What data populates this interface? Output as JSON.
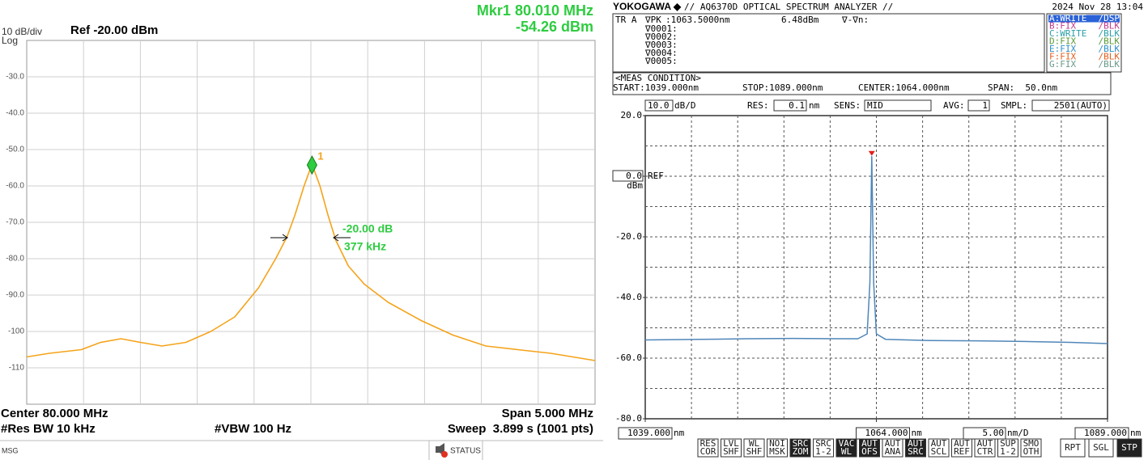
{
  "chart_data": [
    {
      "type": "line",
      "scale": "10 dB/div",
      "scale_type": "Log",
      "reference": "Ref -20.00 dBm",
      "marker": {
        "readout": [
          "Mkr1 80.010 MHz",
          "-54.26 dBm"
        ],
        "label": "1",
        "x": 80.01,
        "y": -54.26,
        "color": "#2ecc40"
      },
      "bandwidth": [
        "-20.00 dB",
        "377 kHz"
      ],
      "footer": {
        "center": "Center 80.000 MHz",
        "span": "Span 5.000 MHz",
        "rbw": "#Res BW 10 kHz",
        "vbw": "#VBW 100 Hz",
        "sweep": "Sweep  3.899 s (1001 pts)"
      },
      "status_bar": {
        "msg": "MSG",
        "status": "STATUS"
      },
      "x": [
        77.5,
        77.7,
        77.98,
        78.15,
        78.33,
        78.5,
        78.69,
        78.9,
        79.12,
        79.33,
        79.54,
        79.69,
        79.79,
        79.86,
        79.94,
        80.01,
        80.08,
        80.15,
        80.22,
        80.33,
        80.47,
        80.68,
        80.97,
        81.25,
        81.54,
        81.82,
        82.11,
        82.5
      ],
      "values": [
        -107,
        -106,
        -105,
        -103,
        -102,
        -103,
        -104,
        -103,
        -100,
        -96,
        -88,
        -80,
        -74,
        -68,
        -60,
        -54,
        -60,
        -68,
        -75,
        -82,
        -87,
        -92,
        -97,
        -101,
        -104,
        -105,
        -106,
        -108
      ],
      "color": "#f5a31a",
      "xlim": [
        77.5,
        82.5
      ],
      "ylim": [
        -120,
        -20
      ],
      "yticks": [
        {
          "value": -30,
          "label": "-30.0"
        },
        {
          "value": -40,
          "label": "-40.0"
        },
        {
          "value": -50,
          "label": "-50.0"
        },
        {
          "value": -60,
          "label": "-60.0"
        },
        {
          "value": -70,
          "label": "-70.0"
        },
        {
          "value": -80,
          "label": "-80.0"
        },
        {
          "value": -90,
          "label": "-90.0"
        },
        -100,
        -110
      ],
      "grid": true
    },
    {
      "type": "line",
      "header": {
        "brand": "YOKOGAWA ◆",
        "model": "// AQ6370D OPTICAL SPECTRUM ANALYZER //",
        "date": "2024 Nov 28 13:04"
      },
      "marker_table": {
        "trace": "TR A",
        "peak": "∇PK",
        "wavelength": ":1063.5000nm",
        "level": "6.48dBm",
        "delta": "∇-∇n:",
        "markers": [
          "∇0001:",
          "∇0002:",
          "∇0003:",
          "∇0004:",
          "∇0005:"
        ]
      },
      "traces": [
        {
          "mode": "A:WRITE",
          "state": "/DSP",
          "color": "#ffffff"
        },
        {
          "mode": "B:FIX",
          "state": "/BLK",
          "color": "#c0398f"
        },
        {
          "mode": "C:WRITE",
          "state": "/BLK",
          "color": "#2a9fa8"
        },
        {
          "mode": "D:FIX",
          "state": "/BLK",
          "color": "#5a9a3a"
        },
        {
          "mode": "E:FIX",
          "state": "/BLK",
          "color": "#2f8fc8"
        },
        {
          "mode": "F:FIX",
          "state": "/BLK",
          "color": "#e06020"
        },
        {
          "mode": "G:FIX",
          "state": "/BLK",
          "color": "#6a9a8a"
        }
      ],
      "meas_condition": {
        "title": "<MEAS CONDITION>",
        "start": "START:1039.000nm",
        "stop": "STOP:1089.000nm",
        "center": "CENTER:1064.000nm",
        "span": "SPAN:  50.0nm"
      },
      "settings": {
        "scale": "10.0",
        "scale_unit": "dB/D",
        "res_label": "RES:",
        "res": "0.1",
        "res_unit": "nm",
        "sens_label": "SENS:",
        "sens": "MID",
        "avg_label": "AVG:",
        "avg": "1",
        "smpl_label": "SMPL:",
        "smpl": "2501(AUTO)"
      },
      "ref_label": "REF",
      "y_unit": "dBm",
      "x_unit": "nm",
      "x_div": "5.00",
      "x_div_unit": "nm/D",
      "softkeys": [
        {
          "label": [
            "RES",
            "COR"
          ],
          "active": false
        },
        {
          "label": [
            "LVL",
            "SHF"
          ],
          "active": false
        },
        {
          "label": [
            "WL",
            "SHF"
          ],
          "active": false
        },
        {
          "label": [
            "NOI",
            "MSK"
          ],
          "active": false
        },
        {
          "label": [
            "SRC",
            "ZOM"
          ],
          "active": true
        },
        {
          "label": [
            "SRC",
            "1-2"
          ],
          "active": false
        },
        {
          "label": [
            "VAC",
            "WL"
          ],
          "active": true
        },
        {
          "label": [
            "AUT",
            "OFS"
          ],
          "active": true
        },
        {
          "label": [
            "AUT",
            "ANA"
          ],
          "active": false
        },
        {
          "label": [
            "AUT",
            "SRC"
          ],
          "active": true
        },
        {
          "label": [
            "AUT",
            "SCL"
          ],
          "active": false
        },
        {
          "label": [
            "AUT",
            "REF"
          ],
          "active": false
        },
        {
          "label": [
            "AUT",
            "CTR"
          ],
          "active": false
        },
        {
          "label": [
            "SUP",
            "1-2"
          ],
          "active": false
        },
        {
          "label": [
            "SMO",
            "OTH"
          ],
          "active": false
        },
        {
          "label": [
            "RPT"
          ],
          "active": false
        },
        {
          "label": [
            "SGL"
          ],
          "active": false
        },
        {
          "label": [
            "STP"
          ],
          "active": true
        }
      ],
      "x": [
        1039,
        1045,
        1050,
        1055,
        1060,
        1062,
        1063,
        1063.3,
        1063.5,
        1063.7,
        1064,
        1065,
        1070,
        1075,
        1080,
        1085,
        1089
      ],
      "values": [
        -54,
        -53.8,
        -53.6,
        -53.5,
        -53.6,
        -53.6,
        -52,
        -35,
        6.48,
        -35,
        -52,
        -53.8,
        -54.2,
        -54.3,
        -54.5,
        -54.8,
        -55.2
      ],
      "color": "#4f86b9",
      "peak_marker_color": "#e0201b",
      "xlim": [
        1039,
        1089
      ],
      "ylim": [
        -80,
        20
      ],
      "xticks": [
        {
          "value": 1039,
          "label": "1039.000"
        },
        {
          "value": 1064,
          "label": "1064.000"
        },
        {
          "value": 1089,
          "label": "1089.000"
        }
      ],
      "yticks": [
        {
          "value": 20,
          "label": "20.0"
        },
        {
          "value": 0,
          "label": "0.0"
        },
        {
          "value": -20,
          "label": "-20.0"
        },
        {
          "value": -40,
          "label": "-40.0"
        },
        {
          "value": -60,
          "label": "-60.0"
        },
        {
          "value": -80,
          "label": "-80.0"
        }
      ],
      "grid": true
    }
  ]
}
